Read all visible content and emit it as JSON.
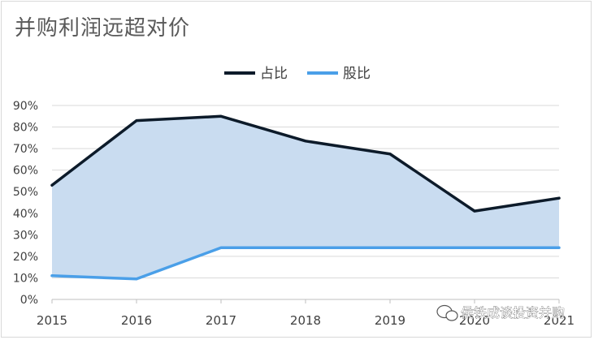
{
  "chart_data": {
    "type": "line",
    "title": "并购利润远超对价",
    "xlabel": "",
    "ylabel": "",
    "x": [
      "2015",
      "2016",
      "2017",
      "2018",
      "2019",
      "2020",
      "2021"
    ],
    "ylim": [
      0,
      90
    ],
    "y_ticks": [
      "0%",
      "10%",
      "20%",
      "30%",
      "40%",
      "50%",
      "60%",
      "70%",
      "80%",
      "90%"
    ],
    "grid": true,
    "legend_position": "top",
    "series": [
      {
        "name": "占比",
        "values": [
          53,
          83,
          85,
          73.5,
          67.5,
          41,
          47
        ],
        "color": "#0d1b2a"
      },
      {
        "name": "股比",
        "values": [
          11,
          9.5,
          24,
          24,
          24,
          24,
          24
        ],
        "color": "#4a9fe8"
      }
    ],
    "fill_between_color": "#c9dcf0"
  },
  "watermark": {
    "icon": "wechat-icon",
    "text": "侯铁成谈投资并购"
  }
}
